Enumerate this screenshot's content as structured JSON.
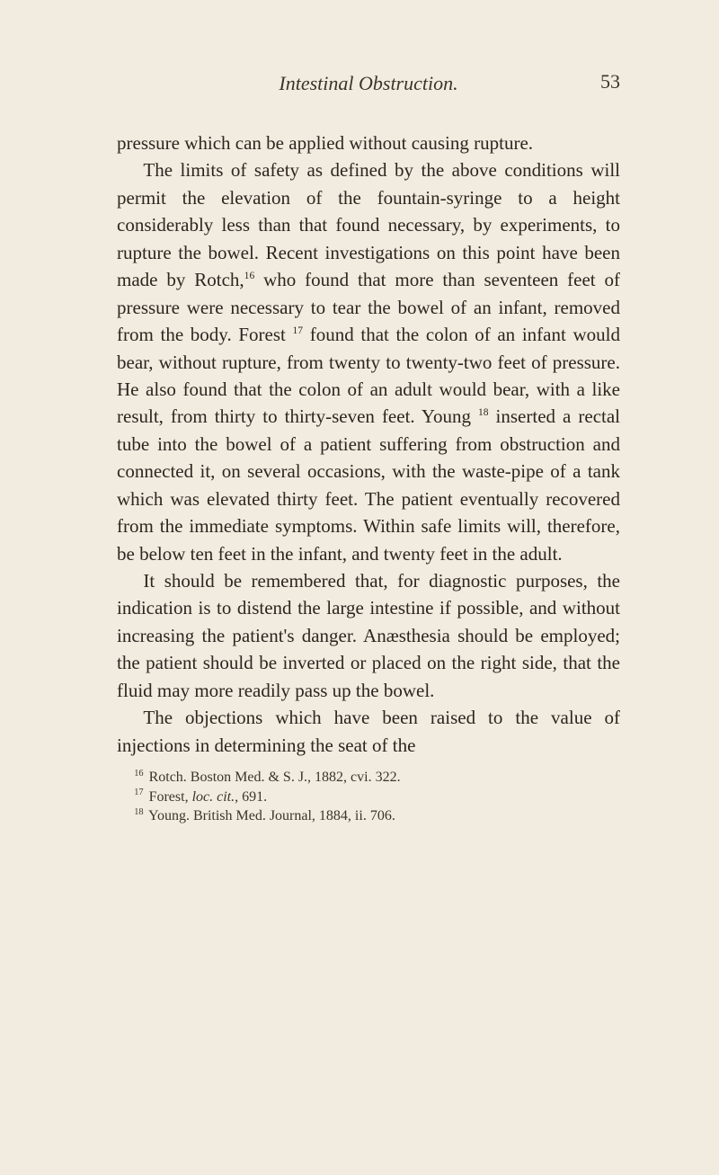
{
  "header": {
    "running_title": "Intestinal Obstruction.",
    "page_number": "53"
  },
  "paragraphs": {
    "p1a": "pressure which can be applied without causing rupture.",
    "p2a": "The limits of safety as defined by the above con­ditions will permit the elevation of the fountain-syringe to a height considerably less than that found necessary, by experiments, to rupture the bowel. Recent investigations on this point have been made by Rotch,",
    "p2_fn16": "16",
    "p2b": " who found that more than seventeen feet of pressure were necessary to tear the bowel of an infant, removed from the body. Forest ",
    "p2_fn17": "17",
    "p2c": " found that the colon of an infant would bear, without rupture, from twenty to twenty-two feet of pressure. He also found that the colon of an adult would bear, with a like result, from thirty to thirty-seven feet. Young ",
    "p2_fn18": "18",
    "p2d": " inserted a rectal tube into the bowel of a patient suffering from obstruc­tion and connected it, on several occasions, with the waste-pipe of a tank which was elevated thirty feet. The patient eventually recovered from the immediate symptoms. Within safe limits will, therefore, be below ten feet in the infant, and twenty feet in the adult.",
    "p3": "It should be remembered that, for diagnostic pur­poses, the indication is to distend the large intestine if possible, and without increasing the patient's danger. Anæsthesia should be employed; the patient should be inverted or placed on the right side, that the fluid may more readily pass up the bowel.",
    "p4": "The objections which have been raised to the value of injections in determining the seat of the"
  },
  "footnotes": {
    "n16_num": "16",
    "n16_text": " Rotch. Boston Med. & S. J., 1882, cvi. 322.",
    "n17_num": "17",
    "n17_text_a": " Forest, ",
    "n17_ital": "loc. cit.",
    "n17_text_b": ", 691.",
    "n18_num": "18",
    "n18_text": " Young. British Med. Journal, 1884, ii. 706."
  }
}
